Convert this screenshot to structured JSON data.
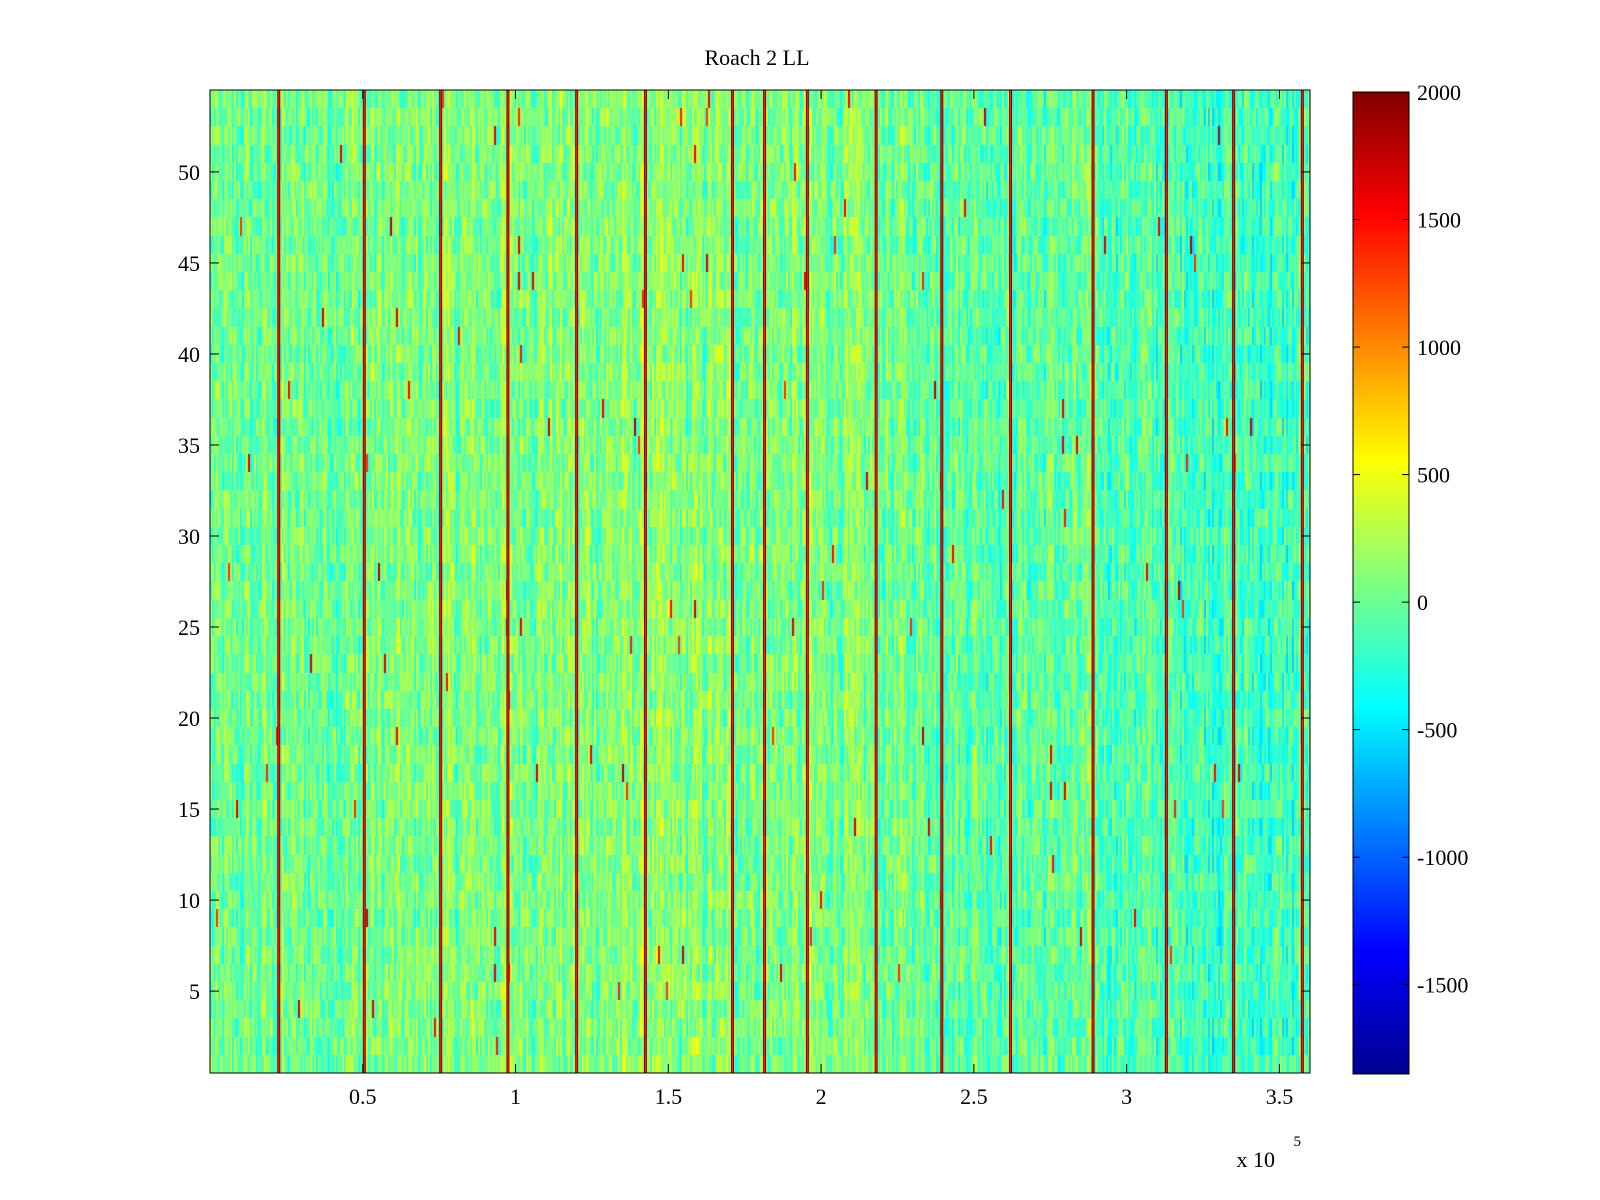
{
  "chart_data": {
    "type": "heatmap",
    "title": "Roach 2 LL",
    "xlabel": "",
    "ylabel": "",
    "colormap": "jet",
    "xlim": [
      0,
      360000
    ],
    "ylim": [
      0.5,
      54.5
    ],
    "x_multiplier_label": {
      "base": "x 10",
      "exponent": "5"
    },
    "x_ticks": [
      0.5,
      1,
      1.5,
      2,
      2.5,
      3,
      3.5
    ],
    "x_tick_labels": [
      "0.5",
      "1",
      "1.5",
      "2",
      "2.5",
      "3",
      "3.5"
    ],
    "y_ticks": [
      5,
      10,
      15,
      20,
      25,
      30,
      35,
      40,
      45,
      50
    ],
    "y_tick_labels": [
      "5",
      "10",
      "15",
      "20",
      "25",
      "30",
      "35",
      "40",
      "45",
      "50"
    ],
    "n_rows": 54,
    "colorbar": {
      "clim": [
        -1850,
        2000
      ],
      "ticks": [
        -1500,
        -1000,
        -500,
        0,
        500,
        1000,
        1500,
        2000
      ],
      "tick_labels": [
        "-1500",
        "-1000",
        "-500",
        "0",
        "500",
        "1000",
        "1500",
        "2000"
      ]
    },
    "background_level": 100,
    "bright_vertical_lines_x": [
      22500,
      50500,
      75500,
      97500,
      120000,
      142500,
      171000,
      181500,
      195500,
      218000,
      239500,
      262000,
      289000,
      313000,
      335000,
      357500
    ]
  }
}
